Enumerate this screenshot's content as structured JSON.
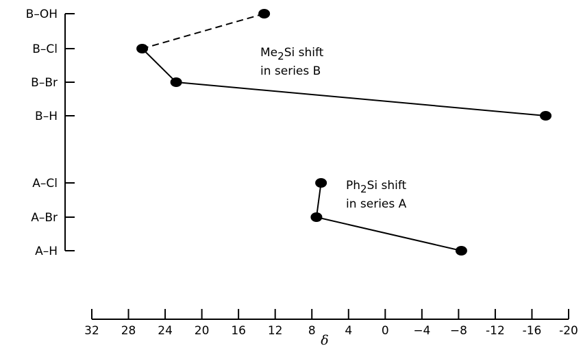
{
  "chart_data": {
    "type": "scatter",
    "xlabel": "δ",
    "xlim": [
      32,
      -20
    ],
    "x_ticks": [
      32,
      28,
      24,
      20,
      16,
      12,
      8,
      4,
      0,
      -4,
      -8,
      -12,
      -16,
      -20
    ],
    "x_tick_labels": [
      "32",
      "28",
      "24",
      "20",
      "16",
      "12",
      "8",
      "4",
      "0",
      "−4",
      "−8",
      "-12",
      "-16",
      "-20"
    ],
    "y_categories": [
      "B-OH",
      "B-Cl",
      "B-Br",
      "B-H",
      "A-Cl",
      "A-Br",
      "A-H"
    ],
    "y_category_labels": [
      "B–OH",
      "B–Cl",
      "B–Br",
      "B–H",
      "A–Cl",
      "A–Br",
      "A–H"
    ],
    "series": [
      {
        "points": [
          {
            "category": "B-OH",
            "x": 13.2
          },
          {
            "category": "B-Cl",
            "x": 26.5
          },
          {
            "category": "B-Br",
            "x": 22.8
          },
          {
            "category": "B-H",
            "x": -17.5
          }
        ],
        "segment_styles": [
          "dashed",
          "solid",
          "solid"
        ]
      },
      {
        "points": [
          {
            "category": "A-Cl",
            "x": 7.0
          },
          {
            "category": "A-Br",
            "x": 7.5
          },
          {
            "category": "A-H",
            "x": -8.3
          }
        ],
        "segment_styles": [
          "solid",
          "solid"
        ]
      }
    ],
    "annotations": [
      {
        "lines": [
          {
            "parts": [
              {
                "text": "Me"
              },
              {
                "text": "2",
                "sub": true
              },
              {
                "text": "Si  shift"
              }
            ]
          },
          {
            "parts": [
              {
                "text": "in series B"
              }
            ]
          }
        ]
      },
      {
        "lines": [
          {
            "parts": [
              {
                "text": "Ph"
              },
              {
                "text": "2",
                "sub": true
              },
              {
                "text": "Si  shift"
              }
            ]
          },
          {
            "parts": [
              {
                "text": "in series A"
              }
            ]
          }
        ]
      }
    ],
    "grid": false
  }
}
